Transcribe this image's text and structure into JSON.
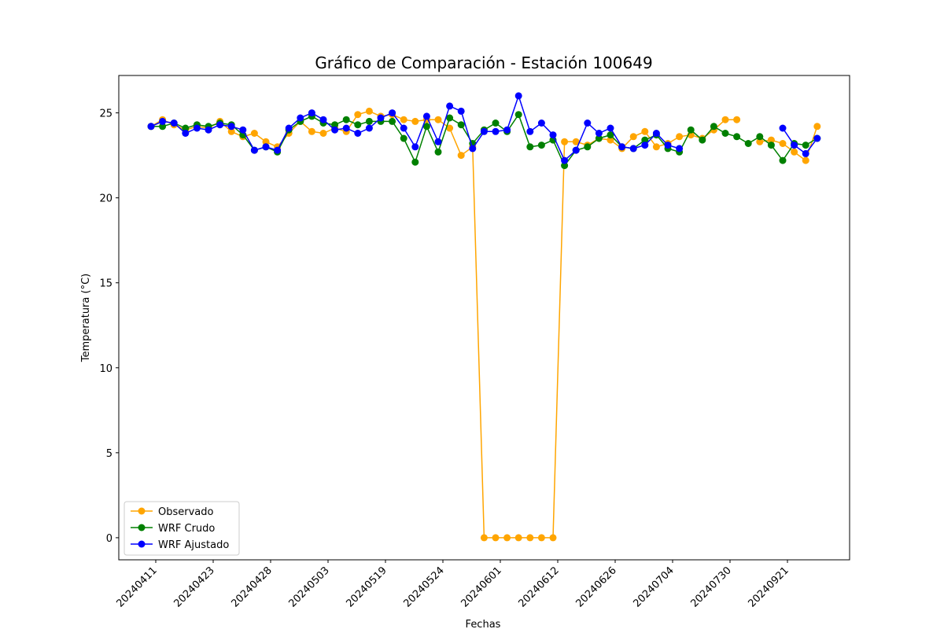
{
  "chart_data": {
    "type": "line",
    "title": "Gráfico de Comparación - Estación 100649",
    "xlabel": "Fechas",
    "ylabel": "Temperatura (°C)",
    "ylim": [
      -1.3,
      27.2
    ],
    "yticks": [
      0,
      5,
      10,
      15,
      20,
      25
    ],
    "xticks": [
      {
        "index": 0,
        "label": "20240411"
      },
      {
        "index": 5,
        "label": "20240423"
      },
      {
        "index": 10,
        "label": "20240428"
      },
      {
        "index": 15,
        "label": "20240503"
      },
      {
        "index": 20,
        "label": "20240519"
      },
      {
        "index": 25,
        "label": "20240524"
      },
      {
        "index": 30,
        "label": "20240601"
      },
      {
        "index": 35,
        "label": "20240612"
      },
      {
        "index": 40,
        "label": "20240626"
      },
      {
        "index": 45,
        "label": "20240704"
      },
      {
        "index": 50,
        "label": "20240730"
      },
      {
        "index": 55,
        "label": "20240921"
      }
    ],
    "grid": false,
    "legend_position": "lower left",
    "series": [
      {
        "name": "Observado",
        "color": "#ffa500",
        "values": [
          24.2,
          24.6,
          24.3,
          24.0,
          24.2,
          24.1,
          24.5,
          23.9,
          23.6,
          23.8,
          23.3,
          23.0,
          23.8,
          24.5,
          23.9,
          23.8,
          24.1,
          23.9,
          24.9,
          25.1,
          24.8,
          24.9,
          24.6,
          24.5,
          24.6,
          24.6,
          24.1,
          22.5,
          23.0,
          0.0,
          0.0,
          0.0,
          0.0,
          0.0,
          0.0,
          0.0,
          23.3,
          23.3,
          23.1,
          23.5,
          23.4,
          22.9,
          23.6,
          23.9,
          23.0,
          23.2,
          23.6,
          23.7,
          23.5,
          24.0,
          24.6,
          24.6,
          null,
          23.3,
          23.4,
          23.2,
          22.7,
          22.2,
          24.2
        ]
      },
      {
        "name": "WRF Crudo",
        "color": "#008000",
        "values": [
          24.2,
          24.2,
          24.4,
          24.1,
          24.3,
          24.2,
          24.4,
          24.3,
          23.7,
          22.8,
          23.0,
          22.7,
          24.0,
          24.5,
          24.8,
          24.4,
          24.3,
          24.6,
          24.3,
          24.5,
          24.5,
          24.5,
          23.5,
          22.1,
          24.2,
          22.7,
          24.7,
          24.3,
          23.2,
          24.0,
          24.4,
          23.9,
          24.9,
          23.0,
          23.1,
          23.4,
          21.9,
          22.8,
          23.0,
          23.5,
          23.7,
          23.0,
          22.9,
          23.4,
          23.7,
          22.9,
          22.7,
          24.0,
          23.4,
          24.2,
          23.8,
          23.6,
          23.2,
          23.6,
          23.1,
          22.2,
          23.2,
          23.1,
          23.5
        ]
      },
      {
        "name": "WRF Ajustado",
        "color": "#0000ff",
        "values": [
          24.2,
          24.5,
          24.4,
          23.8,
          24.1,
          24.0,
          24.3,
          24.2,
          24.0,
          22.8,
          23.0,
          22.8,
          24.1,
          24.7,
          25.0,
          24.6,
          24.0,
          24.1,
          23.8,
          24.1,
          24.7,
          25.0,
          24.1,
          23.0,
          24.8,
          23.3,
          25.4,
          25.1,
          22.9,
          23.9,
          23.9,
          24.0,
          26.0,
          23.9,
          24.4,
          23.7,
          22.2,
          22.8,
          24.4,
          23.8,
          24.1,
          23.0,
          22.9,
          23.1,
          23.8,
          23.1,
          22.9,
          null,
          null,
          null,
          null,
          null,
          null,
          null,
          null,
          24.1,
          23.1,
          22.6,
          23.5
        ]
      }
    ]
  }
}
